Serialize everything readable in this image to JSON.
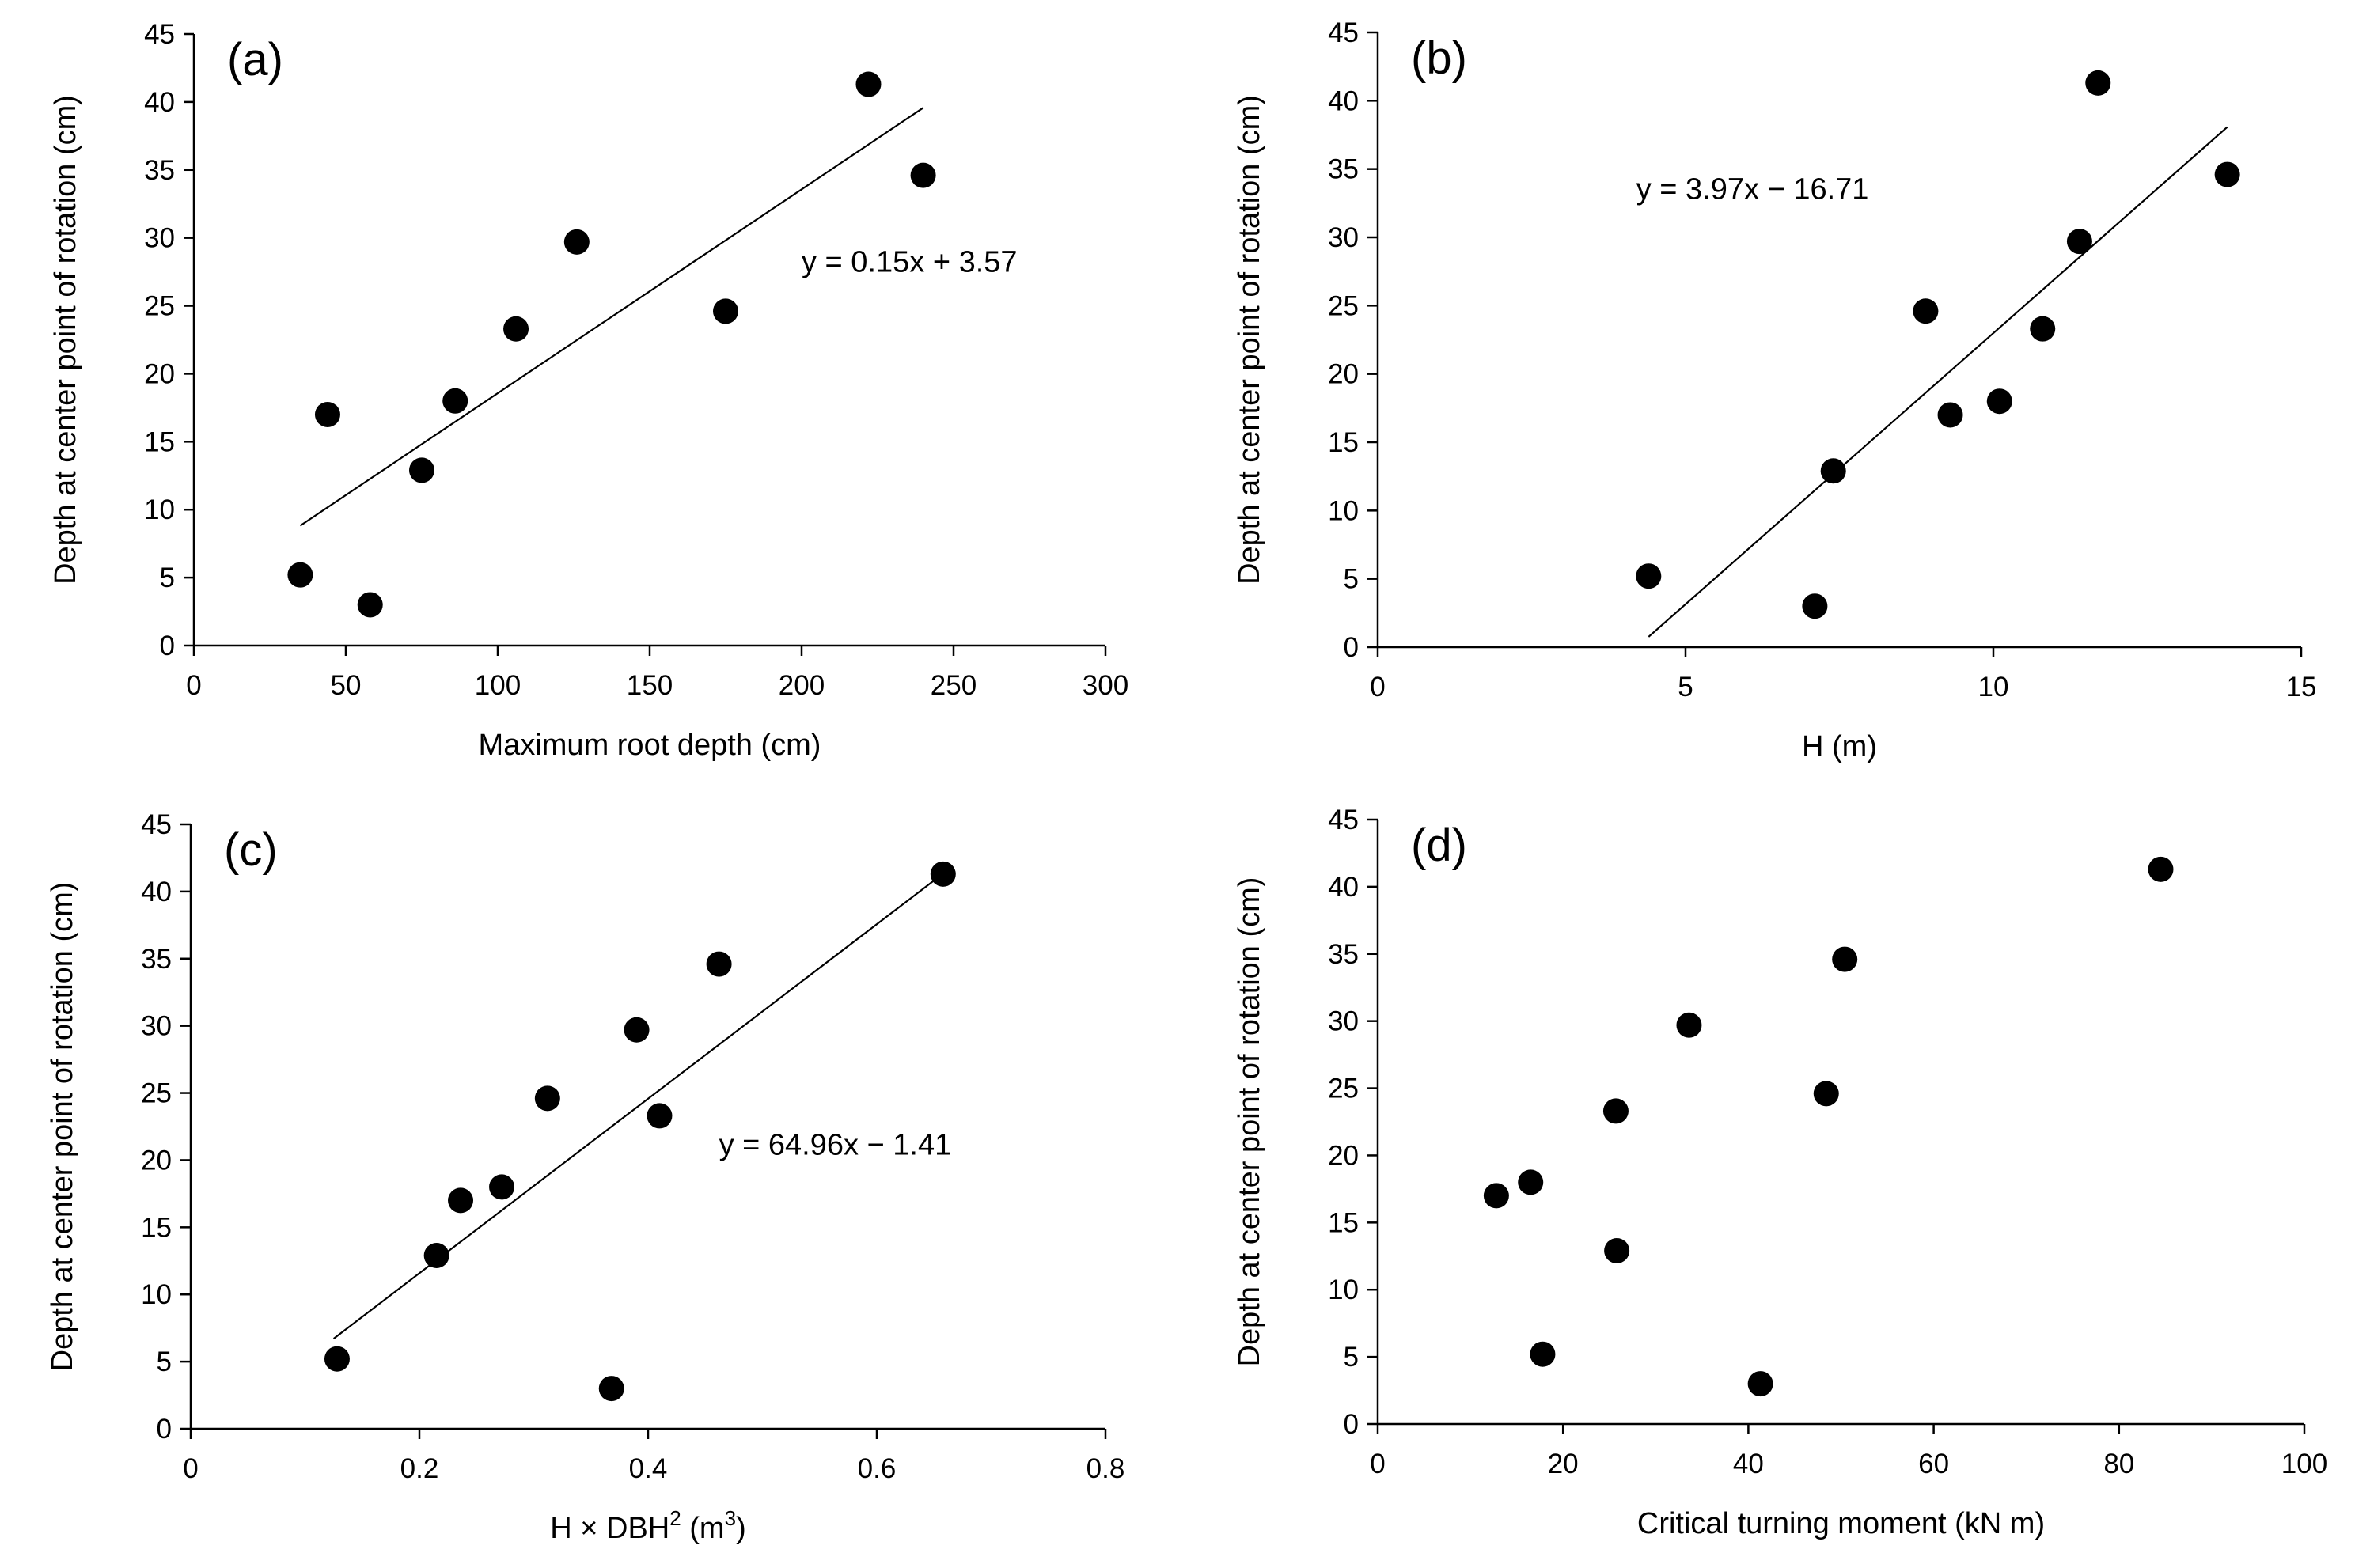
{
  "chart_data": [
    {
      "type": "scatter",
      "panel_label": "(a)",
      "title": "",
      "xlabel": "Maximum root depth (cm)",
      "ylabel": "Depth at center point of rotation (cm)",
      "xlim": [
        0,
        300
      ],
      "ylim": [
        0,
        45
      ],
      "xticks": [
        "0",
        "50",
        "100",
        "150",
        "200",
        "250",
        "300"
      ],
      "yticks": [
        "0",
        "5",
        "10",
        "15",
        "20",
        "25",
        "30",
        "35",
        "40",
        "45"
      ],
      "grid": false,
      "points": [
        {
          "x": 35,
          "y": 5.2
        },
        {
          "x": 44,
          "y": 17.0
        },
        {
          "x": 58,
          "y": 3.0
        },
        {
          "x": 75,
          "y": 12.9
        },
        {
          "x": 86,
          "y": 18.0
        },
        {
          "x": 106,
          "y": 23.3
        },
        {
          "x": 126,
          "y": 29.7
        },
        {
          "x": 175,
          "y": 24.6
        },
        {
          "x": 222,
          "y": 41.3
        },
        {
          "x": 240,
          "y": 34.6
        }
      ],
      "trendline": {
        "slope": 0.15,
        "intercept": 3.57,
        "x_range": [
          35,
          240
        ]
      },
      "equation": "y = 0.15x + 3.57",
      "equation_pos": [
        200,
        27.5
      ]
    },
    {
      "type": "scatter",
      "panel_label": "(b)",
      "title": "",
      "xlabel": "H (m)",
      "ylabel": "Depth at center point of rotation (cm)",
      "xlim": [
        0,
        15
      ],
      "ylim": [
        0,
        45
      ],
      "xticks": [
        "0",
        "5",
        "10",
        "15"
      ],
      "yticks": [
        "0",
        "5",
        "10",
        "15",
        "20",
        "25",
        "30",
        "35",
        "40",
        "45"
      ],
      "grid": false,
      "points": [
        {
          "x": 4.4,
          "y": 5.2
        },
        {
          "x": 7.1,
          "y": 3.0
        },
        {
          "x": 7.4,
          "y": 12.9
        },
        {
          "x": 8.9,
          "y": 24.6
        },
        {
          "x": 9.3,
          "y": 17.0
        },
        {
          "x": 10.1,
          "y": 18.0
        },
        {
          "x": 10.8,
          "y": 23.3
        },
        {
          "x": 11.4,
          "y": 29.7
        },
        {
          "x": 11.7,
          "y": 41.3
        },
        {
          "x": 13.8,
          "y": 34.6
        }
      ],
      "trendline": {
        "slope": 3.97,
        "intercept": -16.71,
        "x_range": [
          4.4,
          13.8
        ]
      },
      "equation": "y = 3.97x − 16.71",
      "equation_pos": [
        4.2,
        32.8
      ]
    },
    {
      "type": "scatter",
      "panel_label": "(c)",
      "title": "",
      "xlabel": "H × DBH",
      "xlabel_sup": "2",
      "xlabel_tail": " (m",
      "xlabel_sup2": "3",
      "xlabel_end": ")",
      "ylabel": "Depth at center point of rotation (cm)",
      "xlim": [
        0,
        0.8
      ],
      "ylim": [
        0,
        45
      ],
      "xticks": [
        "0",
        "0.2",
        "0.4",
        "0.6",
        "0.8"
      ],
      "yticks": [
        "0",
        "5",
        "10",
        "15",
        "20",
        "25",
        "30",
        "35",
        "40",
        "45"
      ],
      "grid": false,
      "points": [
        {
          "x": 0.128,
          "y": 5.2
        },
        {
          "x": 0.215,
          "y": 12.9
        },
        {
          "x": 0.236,
          "y": 17.0
        },
        {
          "x": 0.272,
          "y": 18.0
        },
        {
          "x": 0.312,
          "y": 24.6
        },
        {
          "x": 0.368,
          "y": 3.0
        },
        {
          "x": 0.39,
          "y": 29.7
        },
        {
          "x": 0.41,
          "y": 23.3
        },
        {
          "x": 0.462,
          "y": 34.6
        },
        {
          "x": 0.658,
          "y": 41.3
        }
      ],
      "trendline": {
        "slope": 64.96,
        "intercept": -1.41,
        "x_range": [
          0.125,
          0.655
        ]
      },
      "equation": "y = 64.96x − 1.41",
      "equation_pos": [
        0.462,
        20.4
      ]
    },
    {
      "type": "scatter",
      "panel_label": "(d)",
      "title": "",
      "xlabel": "Critical turning moment (kN m)",
      "ylabel": "Depth at center point of rotation (cm)",
      "xlim": [
        0,
        100
      ],
      "ylim": [
        0,
        45
      ],
      "xticks": [
        "0",
        "20",
        "40",
        "60",
        "80",
        "100"
      ],
      "yticks": [
        "0",
        "5",
        "10",
        "15",
        "20",
        "25",
        "30",
        "35",
        "40",
        "45"
      ],
      "grid": false,
      "points": [
        {
          "x": 12.8,
          "y": 17.0
        },
        {
          "x": 16.5,
          "y": 18.0
        },
        {
          "x": 17.8,
          "y": 5.2
        },
        {
          "x": 25.7,
          "y": 23.3
        },
        {
          "x": 25.8,
          "y": 12.9
        },
        {
          "x": 33.6,
          "y": 29.7
        },
        {
          "x": 41.3,
          "y": 3.0
        },
        {
          "x": 48.4,
          "y": 24.6
        },
        {
          "x": 50.4,
          "y": 34.6
        },
        {
          "x": 84.5,
          "y": 41.3
        }
      ],
      "trendline": null,
      "equation": null
    }
  ]
}
